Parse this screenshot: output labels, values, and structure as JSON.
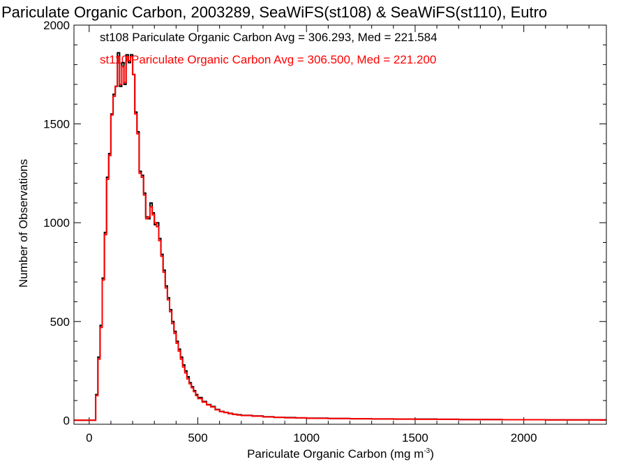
{
  "colors": {
    "series_1": "#000000",
    "series_2": "#ff0000",
    "axis": "#000000",
    "background": "#ffffff"
  },
  "chart_data": {
    "type": "line",
    "title": "Pariculate Organic Carbon, 2003289, SeaWiFS(st108) & SeaWiFS(st110), Eutro",
    "xlabel": "Pariculate Organic Carbon (mg m",
    "xlabel_sup": "-3",
    "xlabel_end": ")",
    "ylabel": "Number of Observations",
    "xlim": [
      -70,
      2380
    ],
    "ylim": [
      -20,
      2000
    ],
    "xticks": [
      0,
      500,
      1000,
      1500,
      2000
    ],
    "xtick_labels": [
      "0",
      "500",
      "1000",
      "1500",
      "2000"
    ],
    "yticks": [
      0,
      500,
      1000,
      1500,
      2000
    ],
    "ytick_labels": [
      "0",
      "500",
      "1000",
      "1500",
      "2000"
    ],
    "grid": false,
    "legend_position": "top-left",
    "series": [
      {
        "name": "st108",
        "label": "st108 Pariculate Organic Carbon Avg = 306.293, Med = 221.584",
        "color": "#000000",
        "x": [
          -70,
          20,
          30,
          40,
          50,
          60,
          70,
          80,
          90,
          100,
          110,
          120,
          130,
          140,
          150,
          160,
          170,
          180,
          190,
          200,
          210,
          220,
          230,
          240,
          250,
          260,
          270,
          280,
          290,
          300,
          310,
          320,
          330,
          340,
          350,
          360,
          370,
          380,
          390,
          400,
          410,
          420,
          430,
          440,
          450,
          460,
          470,
          480,
          490,
          500,
          520,
          540,
          560,
          580,
          600,
          620,
          640,
          660,
          680,
          700,
          750,
          800,
          850,
          900,
          950,
          1000,
          1100,
          1200,
          1300,
          1400,
          1500,
          1600,
          1700,
          1800,
          1900,
          2000,
          2100,
          2200,
          2300,
          2380
        ],
        "y": [
          0,
          0,
          130,
          320,
          480,
          720,
          950,
          1230,
          1350,
          1550,
          1650,
          1690,
          1860,
          1690,
          1810,
          1700,
          1850,
          1810,
          1850,
          1750,
          1560,
          1460,
          1260,
          1240,
          1150,
          1030,
          1020,
          1100,
          1050,
          990,
          1000,
          920,
          840,
          760,
          680,
          620,
          560,
          500,
          450,
          400,
          360,
          320,
          280,
          250,
          220,
          190,
          170,
          150,
          130,
          115,
          95,
          80,
          70,
          55,
          45,
          40,
          35,
          30,
          28,
          25,
          22,
          18,
          15,
          14,
          12,
          11,
          9,
          8,
          7,
          6,
          6,
          5,
          4,
          4,
          3,
          3,
          2,
          2,
          2,
          2
        ]
      },
      {
        "name": "st110",
        "label": "st110 Pariculate Organic Carbon Avg = 306.500, Med = 221.200",
        "color": "#ff0000",
        "x": [
          -70,
          20,
          30,
          40,
          50,
          60,
          70,
          80,
          90,
          100,
          110,
          120,
          130,
          140,
          150,
          160,
          170,
          180,
          190,
          200,
          210,
          220,
          230,
          240,
          250,
          260,
          270,
          280,
          290,
          300,
          310,
          320,
          330,
          340,
          350,
          360,
          370,
          380,
          390,
          400,
          410,
          420,
          430,
          440,
          450,
          460,
          470,
          480,
          490,
          500,
          520,
          540,
          560,
          580,
          600,
          620,
          640,
          660,
          680,
          700,
          750,
          800,
          850,
          900,
          950,
          1000,
          1100,
          1200,
          1300,
          1400,
          1500,
          1600,
          1700,
          1800,
          1900,
          2000,
          2100,
          2200,
          2300,
          2380
        ],
        "y": [
          0,
          0,
          125,
          310,
          470,
          710,
          940,
          1220,
          1340,
          1545,
          1640,
          1690,
          1840,
          1700,
          1790,
          1710,
          1840,
          1820,
          1840,
          1750,
          1550,
          1450,
          1250,
          1230,
          1140,
          1020,
          1030,
          1080,
          1040,
          1000,
          980,
          910,
          830,
          750,
          670,
          610,
          550,
          490,
          440,
          390,
          350,
          310,
          270,
          240,
          210,
          185,
          165,
          145,
          125,
          110,
          92,
          78,
          68,
          53,
          44,
          39,
          34,
          30,
          27,
          24,
          21,
          17,
          15,
          13,
          12,
          10,
          9,
          8,
          7,
          6,
          5,
          5,
          4,
          4,
          3,
          3,
          2,
          2,
          2,
          2
        ]
      }
    ]
  }
}
